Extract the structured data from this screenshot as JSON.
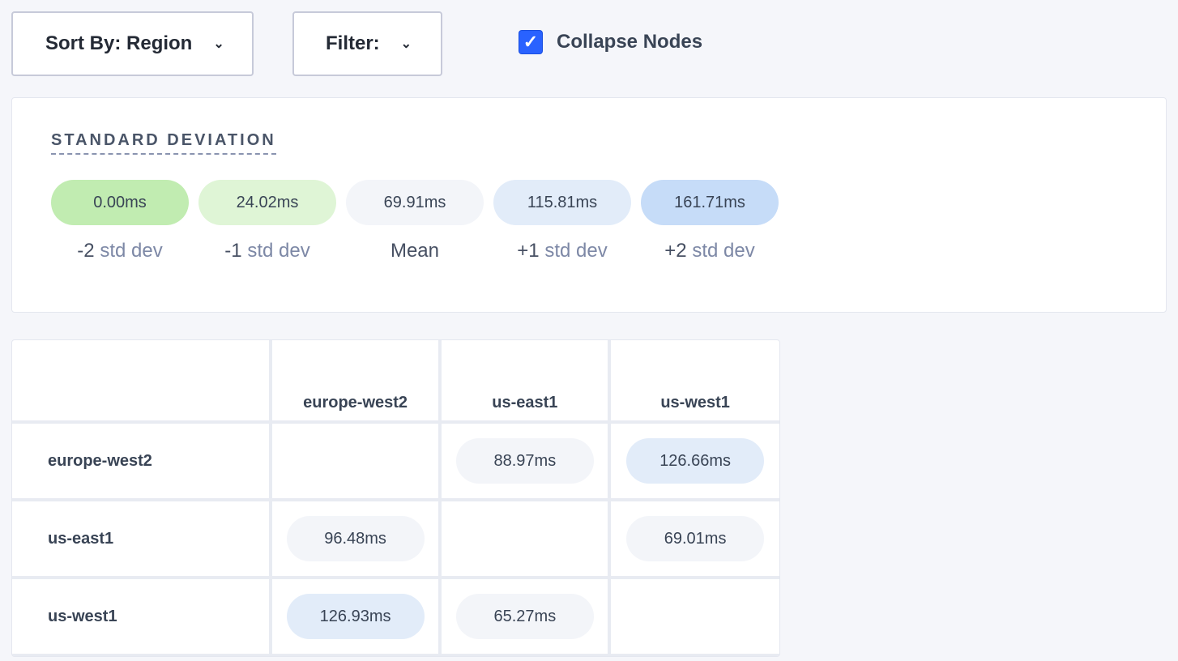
{
  "toolbar": {
    "sort_label": "Sort By: Region",
    "filter_label": "Filter:",
    "collapse_label": "Collapse Nodes",
    "collapse_checked": true
  },
  "legend": {
    "title": "STANDARD DEVIATION",
    "items": [
      {
        "value": "0.00ms",
        "prefix": "-2",
        "suffix": "std dev",
        "color": "#c1ecb1"
      },
      {
        "value": "24.02ms",
        "prefix": "-1",
        "suffix": "std dev",
        "color": "#dff5d6"
      },
      {
        "value": "69.91ms",
        "prefix": "Mean",
        "suffix": "",
        "color": "#f3f5f9"
      },
      {
        "value": "115.81ms",
        "prefix": "+1",
        "suffix": "std dev",
        "color": "#e2ecf9"
      },
      {
        "value": "161.71ms",
        "prefix": "+2",
        "suffix": "std dev",
        "color": "#c6dcf8"
      }
    ]
  },
  "matrix": {
    "columns": [
      "europe-west2",
      "us-east1",
      "us-west1"
    ],
    "rows": [
      {
        "label": "europe-west2",
        "cells": [
          null,
          {
            "value": "88.97ms",
            "color": "#f3f5f9"
          },
          {
            "value": "126.66ms",
            "color": "#e2ecf9"
          }
        ]
      },
      {
        "label": "us-east1",
        "cells": [
          {
            "value": "96.48ms",
            "color": "#f3f5f9"
          },
          null,
          {
            "value": "69.01ms",
            "color": "#f3f5f9"
          }
        ]
      },
      {
        "label": "us-west1",
        "cells": [
          {
            "value": "126.93ms",
            "color": "#e2ecf9"
          },
          {
            "value": "65.27ms",
            "color": "#f3f5f9"
          },
          null
        ]
      }
    ]
  }
}
